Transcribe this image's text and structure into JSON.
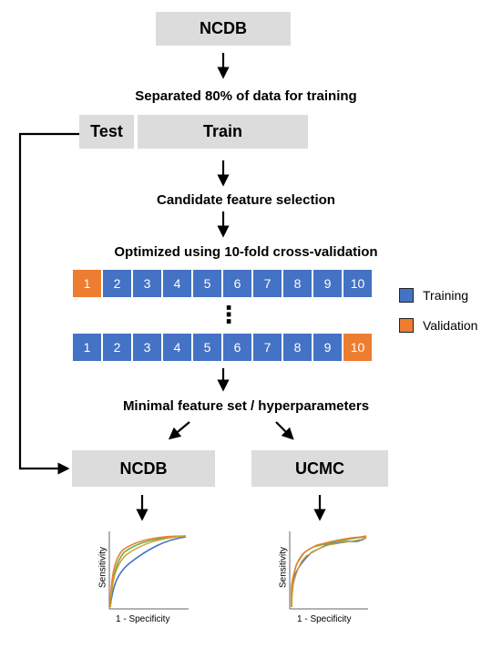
{
  "top_box": "NCDB",
  "step_split": "Separated 80% of data for training",
  "test_box": "Test",
  "train_box": "Train",
  "step_features": "Candidate feature selection",
  "step_cv": "Optimized using 10-fold cross-validation",
  "folds": [
    "1",
    "2",
    "3",
    "4",
    "5",
    "6",
    "7",
    "8",
    "9",
    "10"
  ],
  "ellipsis": "⋮",
  "legend": {
    "training": "Training",
    "validation": "Validation",
    "training_color": "#4472c4",
    "validation_color": "#ed7d31"
  },
  "step_minimal": "Minimal feature set / hyperparameters",
  "ncdb_box": "NCDB",
  "ucmc_box": "UCMC",
  "roc_left": {
    "xlabel": "1 - Specificity",
    "ylabel": "Sensitivity"
  },
  "roc_right": {
    "xlabel": "1 - Specificity",
    "ylabel": "Sensitivity"
  },
  "colors": {
    "box": "#dcdcdc",
    "blue": "#4472c4",
    "orange": "#ed7d31",
    "green": "#70ad47",
    "gold": "#c9a227"
  }
}
